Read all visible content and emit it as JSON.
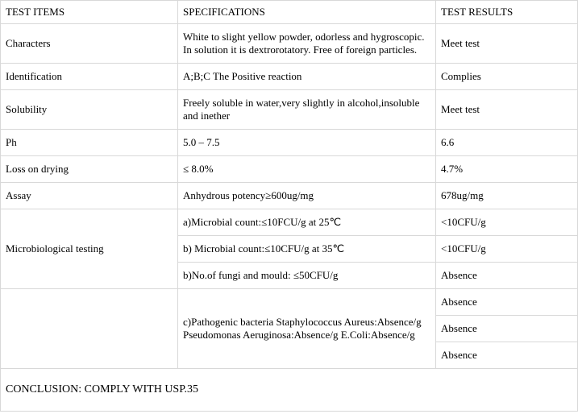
{
  "headers": {
    "col1": "TEST ITEMS",
    "col2": "SPECIFICATIONS",
    "col3": "TEST RESULTS"
  },
  "rows": {
    "characters": {
      "item": "Characters",
      "spec": "White to slight yellow powder, odorless and hygroscopic. In solution it is dextrorotatory. Free of foreign particles.",
      "result": "Meet test"
    },
    "identification": {
      "item": "Identification",
      "spec": "A;B;C The Positive reaction",
      "result": "Complies"
    },
    "solubility": {
      "item": "Solubility",
      "spec": "Freely soluble in water,very slightly in alcohol,insoluble and inether",
      "result": "Meet test"
    },
    "ph": {
      "item": "Ph",
      "spec": "5.0 – 7.5",
      "result": "6.6"
    },
    "loss_drying": {
      "item": "Loss on drying",
      "spec": "≤ 8.0%",
      "result": "4.7%"
    },
    "assay": {
      "item": "Assay",
      "spec": "Anhydrous potency≥600ug/mg",
      "result": "678ug/mg"
    },
    "micro": {
      "item": "Microbiological testing",
      "spec_a": "a)Microbial count:≤10FCU/g at 25℃",
      "result_a": "<10CFU/g",
      "spec_b": "b) Microbial count:≤10CFU/g at 35℃",
      "result_b": "<10CFU/g",
      "spec_c": "b)No.of fungi and mould: ≤50CFU/g",
      "result_c": "Absence",
      "spec_d": "c)Pathogenic bacteria Staphylococcus Aureus:Absence/g Pseudomonas Aeruginosa:Absence/g E.Coli:Absence/g",
      "result_d1": "Absence",
      "result_d2": "Absence",
      "result_d3": "Absence"
    }
  },
  "conclusion": "CONCLUSION: COMPLY WITH USP.35"
}
